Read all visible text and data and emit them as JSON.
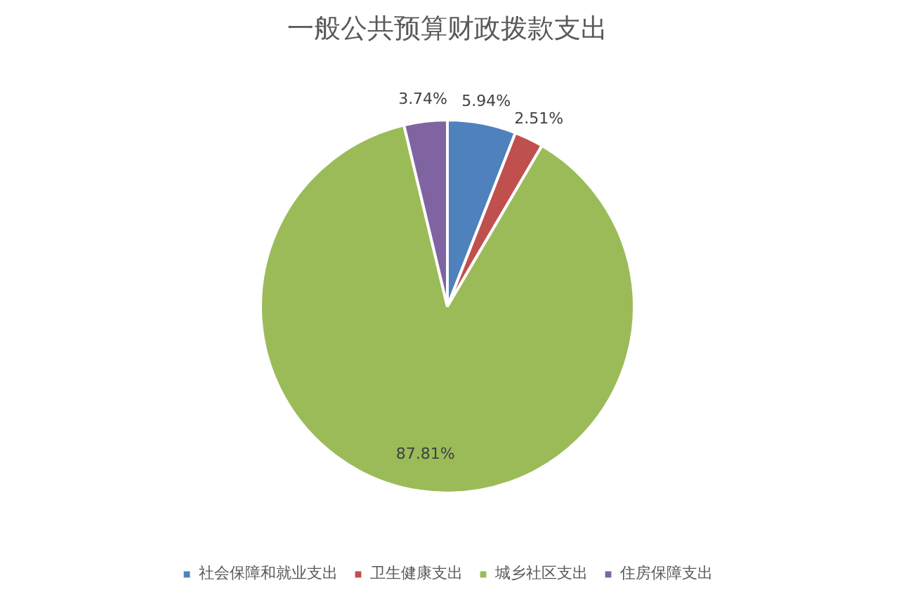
{
  "chart_data": {
    "type": "pie",
    "title": "一般公共预算财政拨款支出",
    "categories": [
      "社会保障和就业支出",
      "卫生健康支出",
      "城乡社区支出",
      "住房保障支出"
    ],
    "values": [
      5.94,
      2.51,
      87.81,
      3.74
    ],
    "value_labels": [
      "5.94%",
      "2.51%",
      "87.81%",
      "3.74%"
    ],
    "colors": [
      "#4f81bd",
      "#c0504d",
      "#9bbb59",
      "#8064a2"
    ],
    "legend": "bottom"
  }
}
